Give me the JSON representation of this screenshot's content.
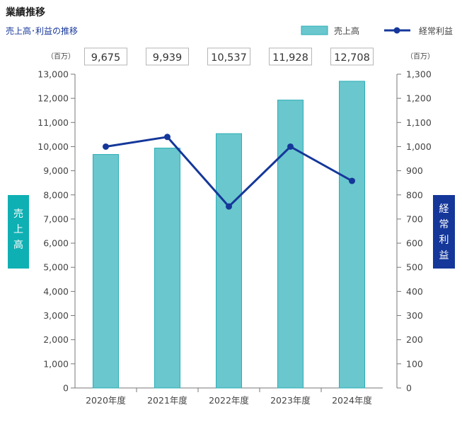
{
  "title": "業績推移",
  "subtitle": "売上高･利益の推移",
  "colors": {
    "bar": "#6ac7cd",
    "bar_stroke": "#2aaeb6",
    "line": "#15379a",
    "left_badge": "#0fb0b3",
    "right_badge": "#15379a"
  },
  "legend": {
    "bars": "売上高",
    "line": "経常利益"
  },
  "units": {
    "left": "（百万）",
    "right": "（百万）"
  },
  "side_labels": {
    "left": [
      "売",
      "上",
      "高"
    ],
    "right": [
      "経",
      "常",
      "利",
      "益"
    ]
  },
  "chart_data": {
    "type": "bar+line",
    "categories": [
      "2020年度",
      "2021年度",
      "2022年度",
      "2023年度",
      "2024年度"
    ],
    "series": [
      {
        "name": "売上高",
        "type": "bar",
        "axis": "left",
        "values": [
          9675,
          9939,
          10537,
          11928,
          12708
        ]
      },
      {
        "name": "経常利益",
        "type": "line",
        "axis": "right",
        "values": [
          1000,
          1040,
          752,
          1000,
          858
        ]
      }
    ],
    "value_labels": [
      "9,675",
      "9,939",
      "10,537",
      "11,928",
      "12,708"
    ],
    "ylim_left": [
      0,
      13000
    ],
    "ylim_right": [
      0,
      1300
    ],
    "yticks_left": [
      "0",
      "1,000",
      "2,000",
      "3,000",
      "4,000",
      "5,000",
      "6,000",
      "7,000",
      "8,000",
      "9,000",
      "10,000",
      "11,000",
      "12,000",
      "13,000"
    ],
    "yticks_right": [
      "0",
      "100",
      "200",
      "300",
      "400",
      "500",
      "600",
      "700",
      "800",
      "900",
      "1,000",
      "1,100",
      "1,200",
      "1,300"
    ],
    "grid": false,
    "legend_position": "top-right"
  }
}
